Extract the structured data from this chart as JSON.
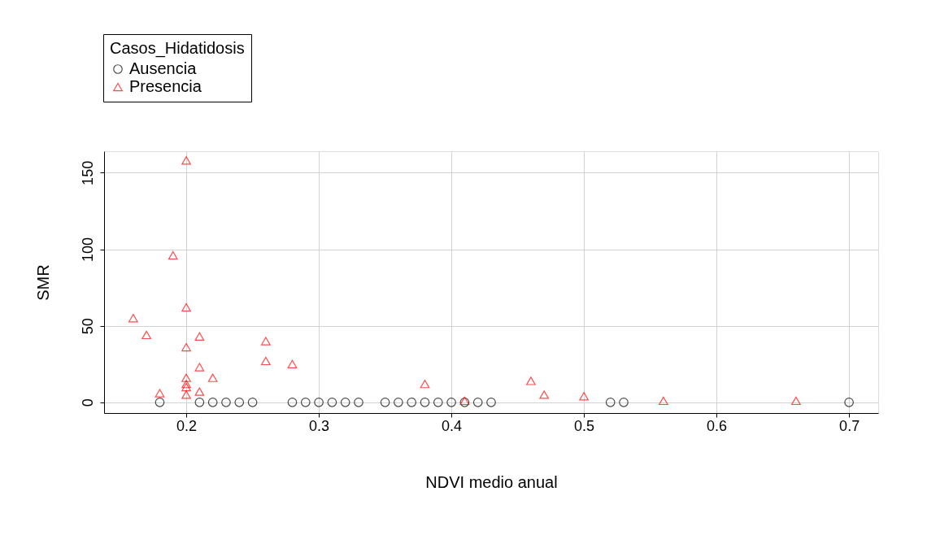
{
  "chart_data": {
    "type": "scatter",
    "xlabel": "NDVI medio anual",
    "ylabel": "SMR",
    "legend_title": "Casos_Hidatidosis",
    "xlim": [
      0.138,
      0.722
    ],
    "ylim": [
      -7,
      164
    ],
    "xticks": [
      0.2,
      0.3,
      0.4,
      0.5,
      0.6,
      0.7
    ],
    "yticks": [
      0,
      50,
      100,
      150
    ],
    "grid": true,
    "legend": "top left",
    "series": [
      {
        "name": "Ausencia",
        "color": "#000000",
        "marker": "circle",
        "x": [
          0.18,
          0.21,
          0.22,
          0.23,
          0.24,
          0.25,
          0.28,
          0.29,
          0.3,
          0.31,
          0.32,
          0.33,
          0.35,
          0.36,
          0.37,
          0.38,
          0.39,
          0.4,
          0.41,
          0.42,
          0.43,
          0.52,
          0.53,
          0.7
        ],
        "values": [
          0,
          0,
          0,
          0,
          0,
          0,
          0,
          0,
          0,
          0,
          0,
          0,
          0,
          0,
          0,
          0,
          0,
          0,
          0,
          0,
          0,
          0,
          0,
          0
        ]
      },
      {
        "name": "Presencia",
        "color": "#ff0000",
        "marker": "triangle",
        "x": [
          0.16,
          0.17,
          0.18,
          0.19,
          0.2,
          0.2,
          0.2,
          0.2,
          0.2,
          0.2,
          0.2,
          0.21,
          0.21,
          0.21,
          0.22,
          0.26,
          0.26,
          0.28,
          0.38,
          0.41,
          0.46,
          0.47,
          0.5,
          0.56,
          0.66
        ],
        "values": [
          55,
          44,
          6,
          96,
          158,
          62,
          36,
          16,
          12,
          10,
          5,
          43,
          23,
          7,
          16,
          40,
          27,
          25,
          12,
          1,
          14,
          5,
          4,
          1,
          1
        ]
      }
    ]
  }
}
